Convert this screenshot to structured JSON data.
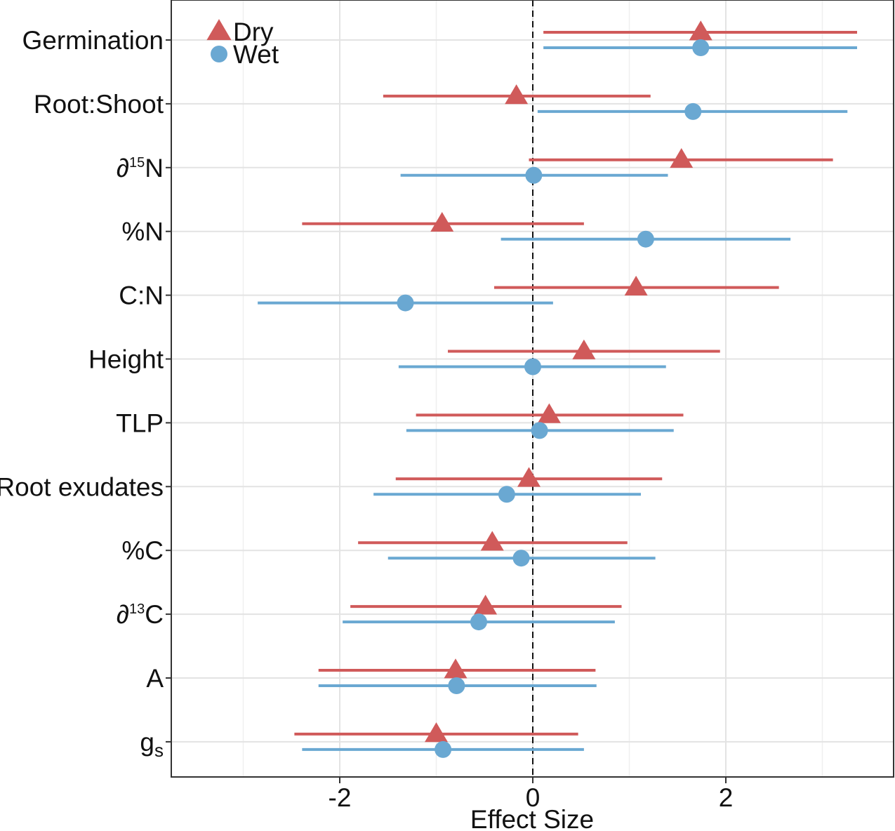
{
  "chart_data": {
    "type": "forest",
    "title": "",
    "xlabel": "Effect Size",
    "ylabel": "",
    "xlim": [
      -3.75,
      3.75
    ],
    "xticks": [
      -2,
      0,
      2
    ],
    "xtick_labels": [
      "-2",
      "0",
      "2"
    ],
    "reference_line": 0,
    "grid": true,
    "legend_position": "top-left",
    "categories": [
      {
        "key": "germination",
        "label": "Germination"
      },
      {
        "key": "root-shoot",
        "label": "Root:Shoot"
      },
      {
        "key": "d15n",
        "label": "∂",
        "sup": "15",
        "tail": "N"
      },
      {
        "key": "pct-n",
        "label": "%N"
      },
      {
        "key": "c-n",
        "label": "C:N"
      },
      {
        "key": "height",
        "label": "Height"
      },
      {
        "key": "tlp",
        "label": "TLP"
      },
      {
        "key": "root-exudates",
        "label": "Root exudates"
      },
      {
        "key": "pct-c",
        "label": "%C"
      },
      {
        "key": "d13c",
        "label": "∂",
        "sup": "13",
        "tail": "C"
      },
      {
        "key": "a",
        "label": "A"
      },
      {
        "key": "gs",
        "label": "g",
        "sub": "s"
      }
    ],
    "series": [
      {
        "name": "Dry",
        "color": "#d05a5a",
        "marker": "triangle",
        "estimates": [
          1.74,
          -0.17,
          1.54,
          -0.94,
          1.07,
          0.53,
          0.17,
          -0.04,
          -0.42,
          -0.49,
          -0.8,
          -1.0
        ],
        "lower": [
          0.11,
          -1.55,
          -0.04,
          -2.39,
          -0.4,
          -0.88,
          -1.21,
          -1.42,
          -1.81,
          -1.89,
          -2.22,
          -2.47
        ],
        "upper": [
          3.36,
          1.22,
          3.11,
          0.53,
          2.55,
          1.94,
          1.56,
          1.34,
          0.98,
          0.92,
          0.65,
          0.47
        ]
      },
      {
        "name": "Wet",
        "color": "#6aa8d2",
        "marker": "circle",
        "estimates": [
          1.74,
          1.66,
          0.01,
          1.17,
          -1.32,
          0.0,
          0.07,
          -0.27,
          -0.12,
          -0.56,
          -0.79,
          -0.93
        ],
        "lower": [
          0.11,
          0.05,
          -1.37,
          -0.33,
          -2.85,
          -1.39,
          -1.31,
          -1.65,
          -1.5,
          -1.97,
          -2.22,
          -2.39
        ],
        "upper": [
          3.36,
          3.26,
          1.4,
          2.67,
          0.21,
          1.38,
          1.46,
          1.12,
          1.27,
          0.85,
          0.66,
          0.53
        ]
      }
    ]
  }
}
